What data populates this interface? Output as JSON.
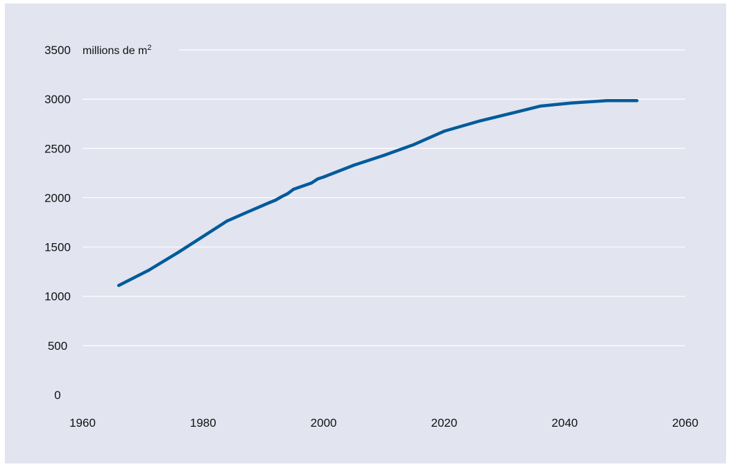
{
  "chart_data": {
    "type": "line",
    "title": "",
    "xlabel": "",
    "ylabel": "",
    "unit_label": {
      "text": "millions de m",
      "superscript": "2"
    },
    "xlim": [
      1960,
      2060
    ],
    "ylim": [
      0,
      3500
    ],
    "x_ticks": [
      "1960",
      "1980",
      "2000",
      "2020",
      "2040",
      "2060"
    ],
    "y_ticks": [
      "0",
      "500",
      "1000",
      "1500",
      "2000",
      "2500",
      "3000",
      "3500"
    ],
    "grid": true,
    "series": [
      {
        "color": "#005b9a",
        "points": [
          [
            1966,
            1110
          ],
          [
            1971,
            1265
          ],
          [
            1976,
            1450
          ],
          [
            1984,
            1765
          ],
          [
            1987,
            1845
          ],
          [
            1991,
            1950
          ],
          [
            1992,
            1975
          ],
          [
            1993,
            2010
          ],
          [
            1994,
            2040
          ],
          [
            1995,
            2085
          ],
          [
            1998,
            2150
          ],
          [
            1999,
            2190
          ],
          [
            2000,
            2210
          ],
          [
            2005,
            2330
          ],
          [
            2010,
            2430
          ],
          [
            2015,
            2540
          ],
          [
            2020,
            2675
          ],
          [
            2026,
            2780
          ],
          [
            2031,
            2855
          ],
          [
            2036,
            2930
          ],
          [
            2041,
            2960
          ],
          [
            2047,
            2985
          ],
          [
            2052,
            2985
          ]
        ]
      }
    ]
  }
}
